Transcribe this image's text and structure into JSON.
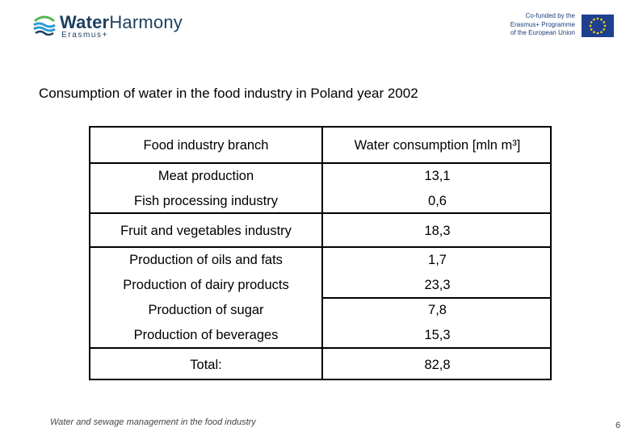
{
  "header": {
    "logo_name_1": "Water",
    "logo_name_2": "Harmony",
    "logo_sub": "Erasmus+",
    "eu_line1": "Co-funded by the",
    "eu_line2": "Erasmus+ Programme",
    "eu_line3": "of the European Union",
    "eu_flag_color": "#1f3f8f",
    "eu_star_color": "#ffdd00",
    "brand_color": "#1c3f5e",
    "wave_color": "#2e9bd6",
    "leaf_color": "#57b64a"
  },
  "title": "Consumption of water in the food industry in Poland year 2002",
  "table": {
    "headers": [
      "Food industry branch",
      "Water consumption [mln m³]"
    ],
    "rows": [
      {
        "branch": "Meat production",
        "value": "13,1"
      },
      {
        "branch": "Fish processing industry",
        "value": "0,6"
      },
      {
        "branch": "Fruit and vegetables industry",
        "value": "18,3"
      },
      {
        "branch": "Production of oils and fats",
        "value": "1,7"
      },
      {
        "branch": "Production of dairy products",
        "value": "23,3"
      },
      {
        "branch": "Production of sugar",
        "value": "7,8"
      },
      {
        "branch": "Production of beverages",
        "value": "15,3"
      }
    ],
    "total_label": "Total:",
    "total_value": "82,8"
  },
  "footer": {
    "text": "Water and sewage management in the food industry",
    "page_number": "6"
  }
}
